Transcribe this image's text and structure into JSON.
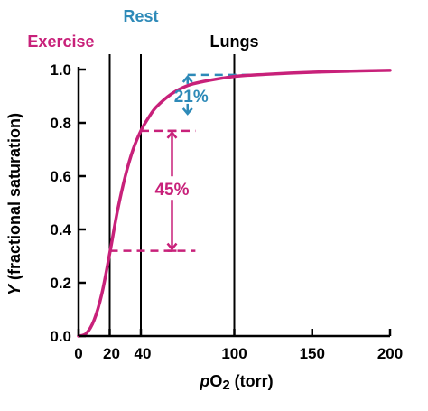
{
  "colors": {
    "curve": "#c8217a",
    "exercise": "#c8217a",
    "rest": "#2e8ab8",
    "lungs": "#000000",
    "axis": "#000000"
  },
  "chart_data": {
    "type": "line",
    "title": "",
    "xlabel_parts": [
      "p",
      "O",
      "2",
      " (torr)"
    ],
    "ylabel_parts": [
      "Y",
      " (fractional saturation)"
    ],
    "xlim": [
      0,
      200
    ],
    "ylim": [
      0,
      1.0
    ],
    "xticks": [
      0,
      20,
      40,
      100,
      150,
      200
    ],
    "xtick_labels": [
      "0",
      "20",
      "40",
      "100",
      "150",
      "200"
    ],
    "yticks": [
      0,
      0.2,
      0.4,
      0.6,
      0.8,
      1.0
    ],
    "ytick_labels": [
      "0.0",
      "0.2",
      "0.4",
      "0.6",
      "0.8",
      "1.0"
    ],
    "grid": false,
    "series": [
      {
        "x": [
          0,
          5,
          10,
          15,
          20,
          25,
          30,
          35,
          40,
          45,
          50,
          60,
          70,
          80,
          100,
          120,
          150,
          175,
          200
        ],
        "y": [
          0.0,
          0.01,
          0.06,
          0.16,
          0.31,
          0.47,
          0.6,
          0.7,
          0.77,
          0.82,
          0.86,
          0.91,
          0.94,
          0.955,
          0.974,
          0.982,
          0.99,
          0.994,
          0.997
        ]
      }
    ],
    "vlines": [
      {
        "x": 20,
        "label": "Exercise",
        "color_key": "exercise"
      },
      {
        "x": 40,
        "label": "Rest",
        "color_key": "rest"
      },
      {
        "x": 100,
        "label": "Lungs",
        "color_key": "lungs"
      }
    ],
    "annotations": [
      {
        "label": "21%",
        "x": 70,
        "y_top": 0.98,
        "y_bottom": 0.77,
        "color_key": "rest"
      },
      {
        "label": "45%",
        "x": 60,
        "y_top": 0.77,
        "y_bottom": 0.32,
        "color_key": "exercise"
      }
    ]
  }
}
